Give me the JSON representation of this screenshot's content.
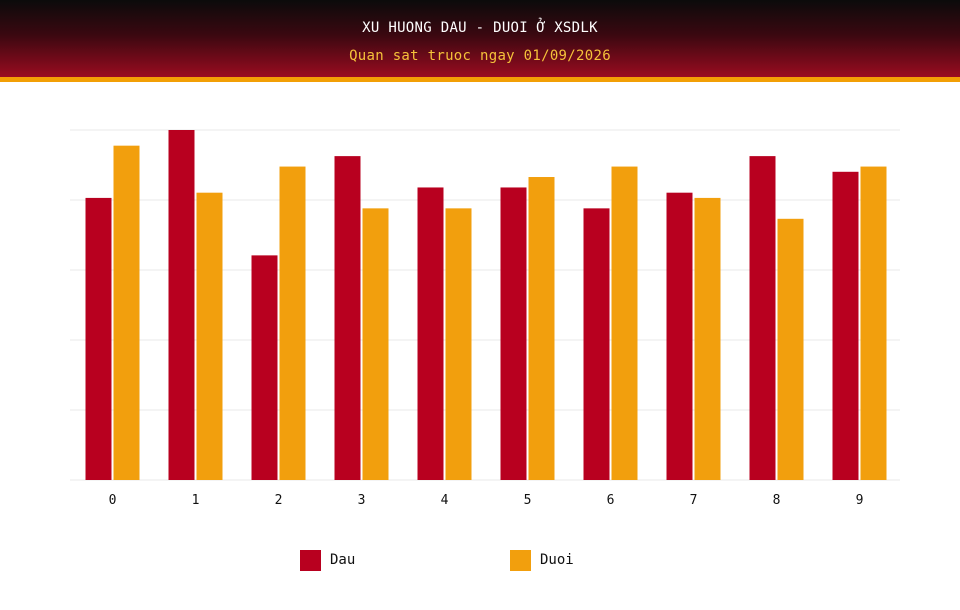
{
  "header": {
    "title": "XU HUONG DAU - DUOI Ở XSDLK",
    "subtitle": "Quan sat truoc ngay 01/09/2026"
  },
  "colors": {
    "dau": "#b8001f",
    "duoi": "#f29f0d",
    "grid": "#e8e8e8"
  },
  "chart_data": {
    "type": "bar",
    "title": "XU HUONG DAU - DUOI Ở XSDLK",
    "subtitle": "Quan sat truoc ngay 01/09/2026",
    "categories": [
      "0",
      "1",
      "2",
      "3",
      "4",
      "5",
      "6",
      "7",
      "8",
      "9"
    ],
    "series": [
      {
        "name": "Dau",
        "color": "#b8001f",
        "values": [
          54,
          67,
          43,
          62,
          56,
          56,
          52,
          55,
          62,
          59
        ]
      },
      {
        "name": "Duoi",
        "color": "#f29f0d",
        "values": [
          64,
          55,
          60,
          52,
          52,
          58,
          60,
          54,
          50,
          60
        ]
      }
    ],
    "ylim": [
      0,
      67
    ],
    "grid": true,
    "legend": "bottom"
  }
}
